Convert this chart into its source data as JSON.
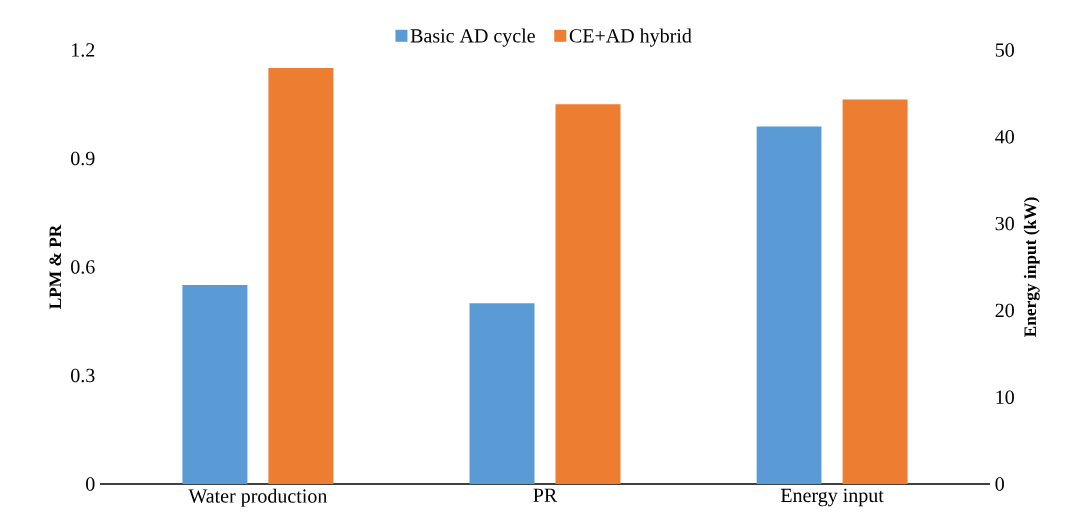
{
  "chart_data": {
    "type": "bar",
    "categories": [
      "Water production",
      "PR",
      "Energy input"
    ],
    "ylabel": "LPM & PR",
    "y2label": "Energy input (kW)",
    "ylim": [
      0,
      1.2
    ],
    "yticks": [
      0,
      0.3,
      0.6,
      0.9,
      1.2
    ],
    "y2lim": [
      0,
      50
    ],
    "y2ticks": [
      0,
      10,
      20,
      30,
      40,
      50
    ],
    "legend": "top",
    "grid": false,
    "series": [
      {
        "name": "Basic AD cycle",
        "color": "#5b9bd5",
        "values": [
          0.55,
          0.5,
          null
        ]
      },
      {
        "name": "CE+AD hybrid",
        "color": "#ed7d31",
        "values": [
          1.15,
          1.05,
          null
        ]
      },
      {
        "color": "#5b9bd5",
        "axis": "y2",
        "values": [
          null,
          null,
          41.2
        ]
      },
      {
        "color": "#ed7d31",
        "axis": "y2",
        "values": [
          null,
          null,
          44.3
        ]
      }
    ]
  }
}
